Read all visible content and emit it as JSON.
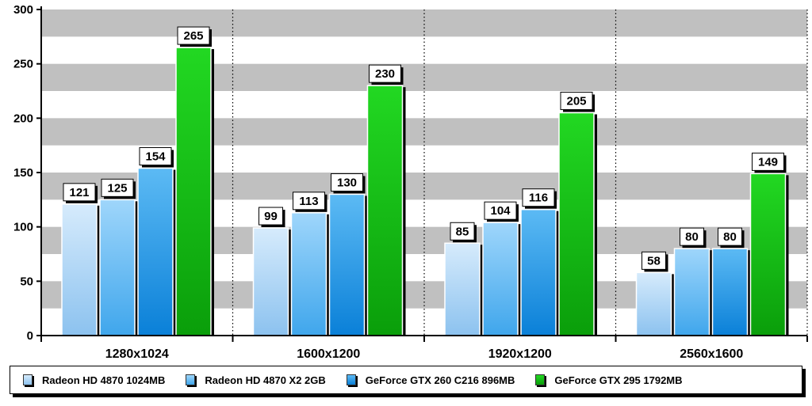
{
  "chart_data": {
    "type": "bar",
    "categories": [
      "1280x1024",
      "1600x1200",
      "1920x1200",
      "2560x1600"
    ],
    "series": [
      {
        "name": "Radeon HD 4870 1024MB",
        "values": [
          121,
          99,
          85,
          58
        ],
        "color": "#a9d2f5"
      },
      {
        "name": "Radeon HD 4870 X2 2GB",
        "values": [
          125,
          113,
          104,
          80
        ],
        "color": "#6cbcf1"
      },
      {
        "name": "GeForce GTX 260 C216 896MB",
        "values": [
          154,
          130,
          116,
          80
        ],
        "color": "#2196e3"
      },
      {
        "name": "GeForce GTX 295 1792MB",
        "values": [
          265,
          230,
          205,
          149
        ],
        "color": "#14c014"
      }
    ],
    "yticks": [
      0,
      50,
      100,
      150,
      200,
      250,
      300
    ],
    "ylim": [
      0,
      300
    ],
    "legend_position": "bottom",
    "grid": "alternating horizontal bands"
  },
  "legend": [
    {
      "label": "Radeon HD 4870 1024MB",
      "color": "#a9d2f5"
    },
    {
      "label": "Radeon HD 4870 X2 2GB",
      "color": "#6cbcf1"
    },
    {
      "label": "GeForce GTX 260 C216 896MB",
      "color": "#2196e3"
    },
    {
      "label": "GeForce GTX 295 1792MB",
      "color": "#14c014"
    }
  ]
}
